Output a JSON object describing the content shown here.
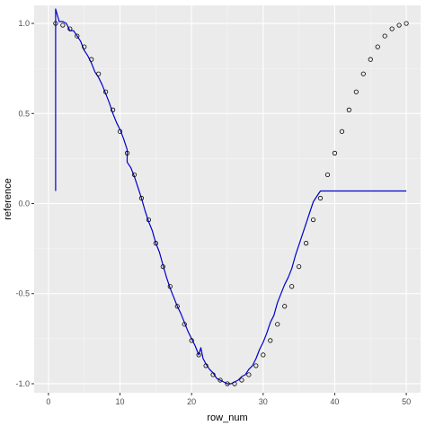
{
  "chart_data": {
    "type": "scatter",
    "title": "",
    "xlabel": "row_num",
    "ylabel": "reference",
    "xlim": [
      -2,
      52
    ],
    "ylim": [
      -1.05,
      1.1
    ],
    "x_ticks": [
      0,
      10,
      20,
      30,
      40,
      50
    ],
    "x_tick_labels": [
      "0",
      "10",
      "20",
      "30",
      "40",
      "50"
    ],
    "y_ticks": [
      -1.0,
      -0.5,
      0.0,
      0.5,
      1.0
    ],
    "y_tick_labels": [
      "-1.0",
      "-0.5",
      "0.0",
      "0.5",
      "1.0"
    ],
    "grid": true,
    "colors": {
      "panel": "#ebebeb",
      "grid_major": "#ffffff",
      "grid_minor": "#f5f5f5",
      "points": "#000000",
      "line": "#0000cc"
    },
    "points": {
      "x": [
        1,
        2,
        3,
        4,
        5,
        6,
        7,
        8,
        9,
        10,
        11,
        12,
        13,
        14,
        15,
        16,
        17,
        18,
        19,
        20,
        21,
        22,
        23,
        24,
        25,
        26,
        27,
        28,
        29,
        30,
        31,
        32,
        33,
        34,
        35,
        36,
        37,
        38,
        39,
        40,
        41,
        42,
        43,
        44,
        45,
        46,
        47,
        48,
        49,
        50
      ],
      "y": [
        1.0,
        0.99,
        0.97,
        0.93,
        0.87,
        0.8,
        0.72,
        0.62,
        0.52,
        0.4,
        0.28,
        0.16,
        0.03,
        -0.09,
        -0.22,
        -0.35,
        -0.46,
        -0.57,
        -0.67,
        -0.76,
        -0.84,
        -0.9,
        -0.95,
        -0.98,
        -1.0,
        -1.0,
        -0.98,
        -0.95,
        -0.9,
        -0.84,
        -0.76,
        -0.67,
        -0.57,
        -0.46,
        -0.35,
        -0.22,
        -0.09,
        0.03,
        0.16,
        0.28,
        0.4,
        0.52,
        0.62,
        0.72,
        0.8,
        0.87,
        0.93,
        0.97,
        0.99,
        1.0
      ]
    },
    "line": {
      "x": [
        1,
        1,
        1.5,
        2,
        2.5,
        3,
        3.5,
        4,
        4.5,
        5,
        5.5,
        6,
        6.5,
        7,
        7.5,
        8,
        8.5,
        9,
        9.5,
        10,
        10.5,
        11,
        11,
        11.5,
        12,
        12.5,
        13,
        13.5,
        14,
        14.5,
        15,
        15.5,
        16,
        16.5,
        17,
        17.5,
        18,
        18.5,
        19,
        19.5,
        20,
        20.5,
        21,
        21.3,
        21.6,
        22,
        22.5,
        23,
        23.5,
        24,
        24.5,
        25,
        25.5,
        26,
        26.5,
        27,
        27.5,
        28,
        28.5,
        29,
        29.5,
        30,
        30.5,
        31,
        31.5,
        32,
        32.5,
        33,
        33.5,
        34,
        34.5,
        35,
        35.5,
        36,
        36.5,
        37,
        37.5,
        38,
        50
      ],
      "y": [
        0.07,
        1.08,
        1.01,
        1.01,
        1.0,
        0.96,
        0.96,
        0.93,
        0.9,
        0.85,
        0.82,
        0.78,
        0.73,
        0.7,
        0.66,
        0.61,
        0.56,
        0.5,
        0.45,
        0.41,
        0.36,
        0.3,
        0.23,
        0.2,
        0.15,
        0.09,
        0.03,
        -0.04,
        -0.1,
        -0.15,
        -0.22,
        -0.27,
        -0.34,
        -0.41,
        -0.47,
        -0.52,
        -0.57,
        -0.61,
        -0.66,
        -0.71,
        -0.75,
        -0.79,
        -0.84,
        -0.8,
        -0.86,
        -0.89,
        -0.92,
        -0.94,
        -0.97,
        -0.98,
        -0.99,
        -1.0,
        -1.0,
        -0.99,
        -0.98,
        -0.96,
        -0.95,
        -0.92,
        -0.9,
        -0.86,
        -0.81,
        -0.77,
        -0.72,
        -0.66,
        -0.62,
        -0.55,
        -0.5,
        -0.45,
        -0.41,
        -0.36,
        -0.29,
        -0.23,
        -0.17,
        -0.11,
        -0.05,
        0.01,
        0.04,
        0.07,
        0.07
      ]
    }
  }
}
